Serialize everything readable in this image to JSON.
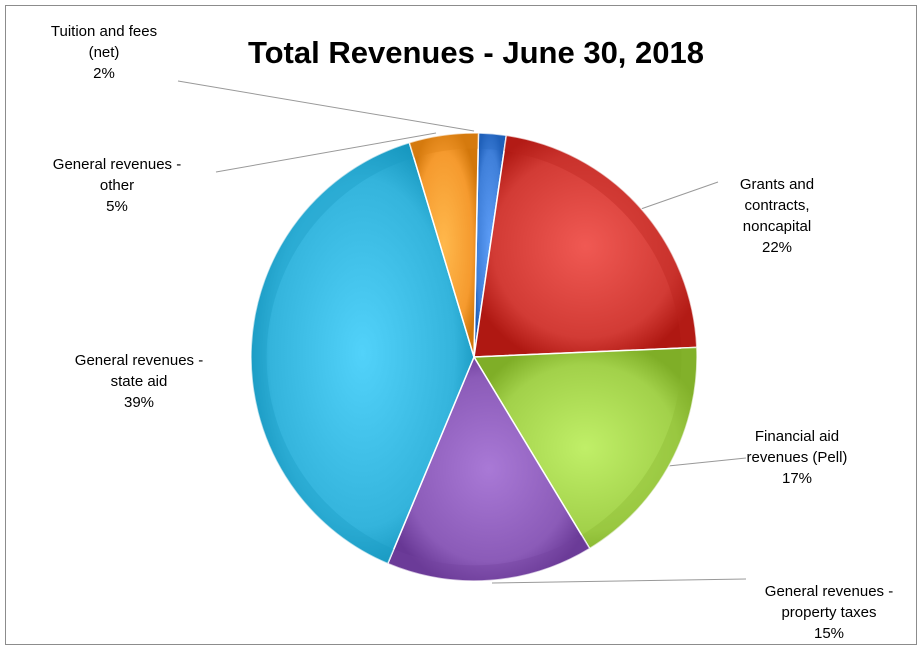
{
  "chart_data": {
    "type": "pie",
    "title": "Total Revenues - June 30, 2018",
    "slices": [
      {
        "name": "Tuition and fees (net)",
        "label_lines": [
          "Tuition and fees",
          "(net)"
        ],
        "percent_label": "2%",
        "value": 2,
        "color": "#3f7fd9"
      },
      {
        "name": "Grants and contracts, noncapital",
        "label_lines": [
          "Grants and",
          "contracts,",
          "noncapital"
        ],
        "percent_label": "22%",
        "value": 22,
        "color": "#d23b35"
      },
      {
        "name": "Financial aid revenues (Pell)",
        "label_lines": [
          "Financial aid",
          "revenues (Pell)"
        ],
        "percent_label": "17%",
        "value": 17,
        "color": "#a2d14a"
      },
      {
        "name": "General revenues - property taxes",
        "label_lines": [
          "General revenues -",
          "property taxes"
        ],
        "percent_label": "15%",
        "value": 15,
        "color": "#8b5bb8"
      },
      {
        "name": "General revenues - state aid",
        "label_lines": [
          "General revenues -",
          "state aid"
        ],
        "percent_label": "39%",
        "value": 39,
        "color": "#34b4dc"
      },
      {
        "name": "General revenues - other",
        "label_lines": [
          "General revenues -",
          "other"
        ],
        "percent_label": "5%",
        "value": 5,
        "color": "#f59a2e"
      }
    ]
  }
}
